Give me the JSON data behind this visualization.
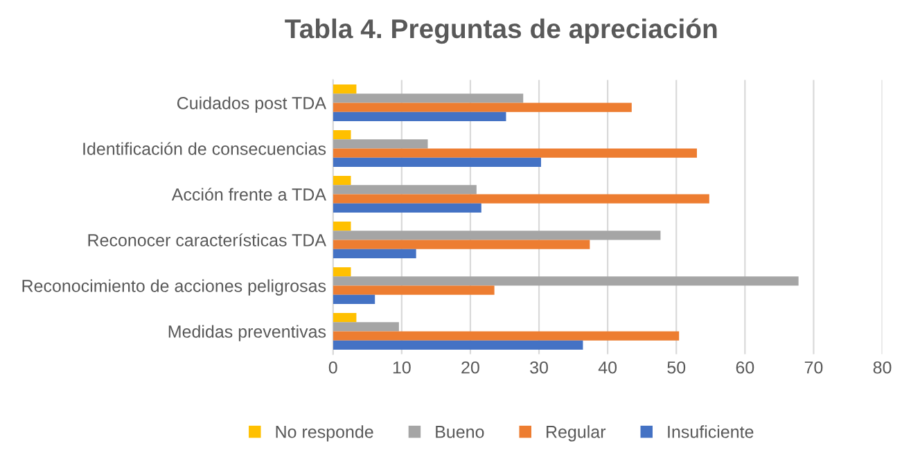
{
  "chart_data": {
    "type": "bar",
    "orientation": "horizontal",
    "title": "Tabla 4. Preguntas de apreciación",
    "categories": [
      "Cuidados post TDA",
      "Identificación de consecuencias",
      "Acción frente a TDA",
      "Reconocer características TDA",
      "Reconocimiento de acciones peligrosas",
      "Medidas preventivas"
    ],
    "series": [
      {
        "name": "No responde",
        "color": "#ffc000",
        "values": [
          3.4,
          2.6,
          2.6,
          2.6,
          2.6,
          3.4
        ]
      },
      {
        "name": "Bueno",
        "color": "#a5a5a5",
        "values": [
          27.7,
          13.8,
          20.9,
          47.7,
          67.8,
          9.6
        ]
      },
      {
        "name": "Regular",
        "color": "#ed7d31",
        "values": [
          43.5,
          53.0,
          54.8,
          37.4,
          23.5,
          50.4
        ]
      },
      {
        "name": "Insuficiente",
        "color": "#4472c4",
        "values": [
          25.2,
          30.3,
          21.6,
          12.1,
          6.1,
          36.4
        ]
      }
    ],
    "xlim": [
      0,
      80
    ],
    "xticks": [
      0,
      10,
      20,
      30,
      40,
      50,
      60,
      70,
      80
    ],
    "grid": "x",
    "legend": "bottom"
  }
}
